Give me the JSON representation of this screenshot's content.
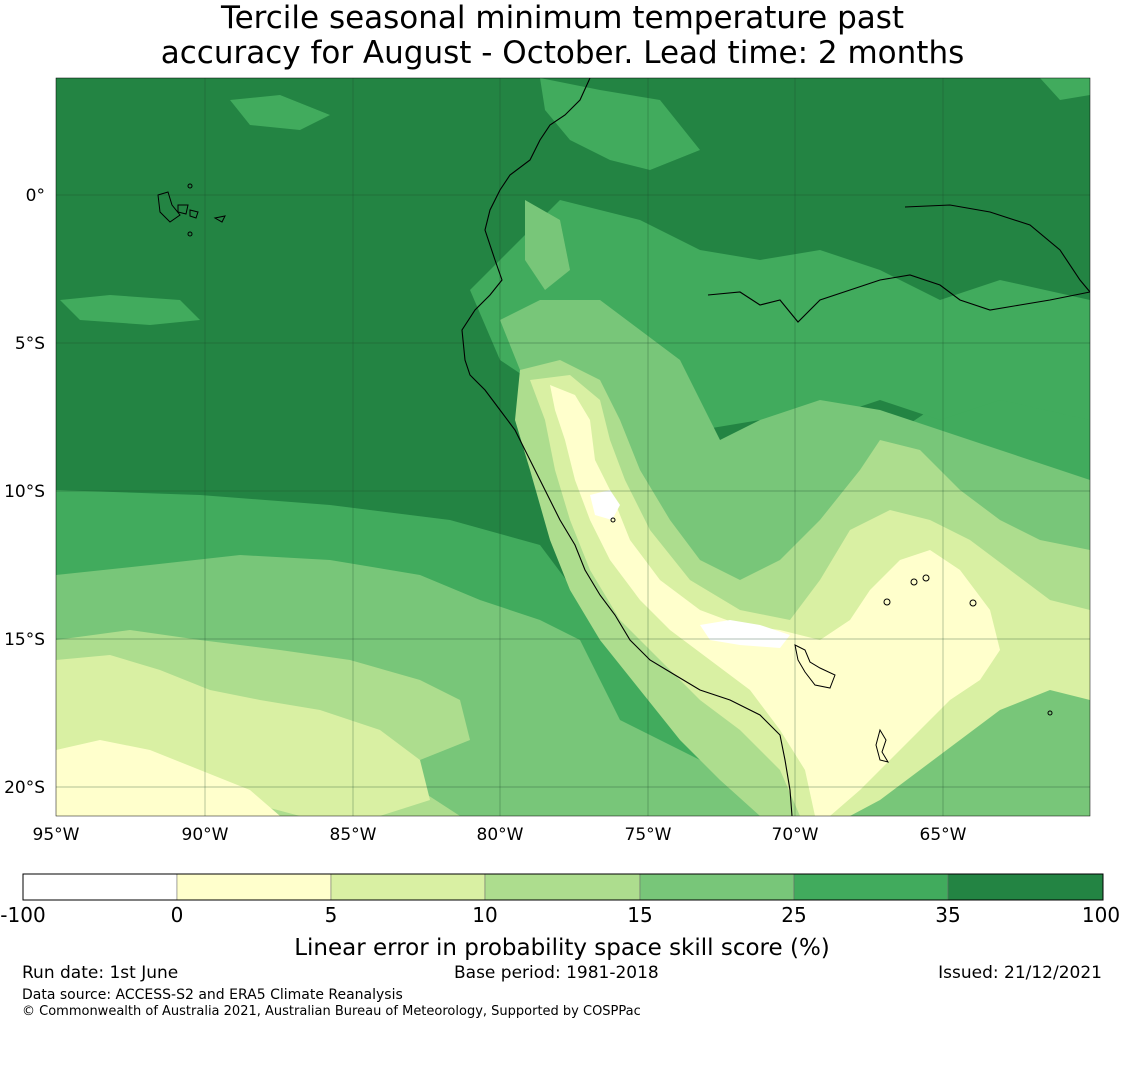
{
  "title_line1": "Tercile seasonal minimum temperature past",
  "title_line2": "accuracy for August - October. Lead time: 2 months",
  "map": {
    "lon_ticks": [
      "95°W",
      "90°W",
      "85°W",
      "80°W",
      "75°W",
      "70°W",
      "65°W"
    ],
    "lat_ticks": [
      "0°",
      "5°S",
      "10°S",
      "15°S",
      "20°S"
    ],
    "land_outline_color": "#000000",
    "gridline_color": "#1a4a2a"
  },
  "colorbar": {
    "label": "Linear error in probability space skill score (%)",
    "ticks": [
      "-100",
      "0",
      "5",
      "10",
      "15",
      "25",
      "35",
      "100"
    ],
    "colors": [
      "#ffffff",
      "#ffffcc",
      "#d9f0a3",
      "#addd8e",
      "#78c679",
      "#41ab5d",
      "#238443"
    ]
  },
  "footer": {
    "run_date": "Run date: 1st June",
    "base_period": "Base period: 1981-2018",
    "issued": "Issued: 21/12/2021",
    "data_source": "Data source: ACCESS-S2 and ERA5 Climate Reanalysis",
    "copyright": "© Commonwealth of Australia 2021, Australian Bureau of Meteorology, Supported by COSPPac"
  }
}
